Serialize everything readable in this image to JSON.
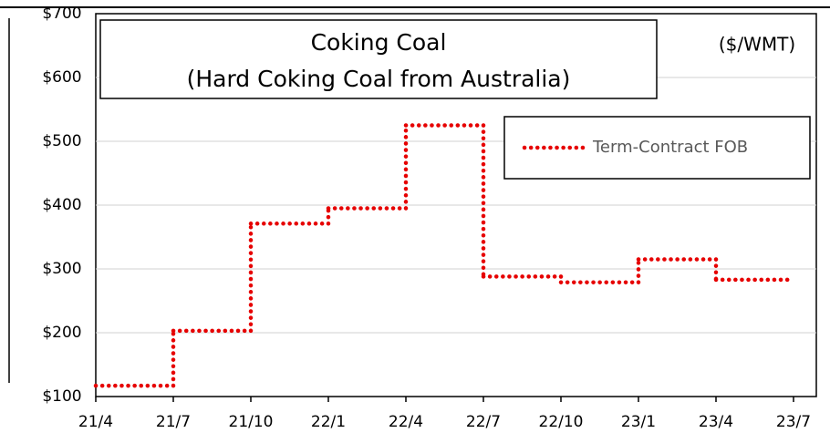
{
  "chart_data": {
    "type": "step",
    "title": "Coking Coal",
    "subtitle": "(Hard Coking Coal from Australia)",
    "unit_label": "($/WMT)",
    "categories": [
      "21/4",
      "21/7",
      "21/10",
      "22/1",
      "22/4",
      "22/7",
      "22/10",
      "23/1",
      "23/4",
      "23/7"
    ],
    "series": [
      {
        "name": "Term-Contract FOB",
        "color": "#e60000",
        "values": [
          117,
          203,
          371,
          395,
          525,
          288,
          279,
          315,
          283,
          null
        ]
      }
    ],
    "ylim": [
      100,
      700
    ],
    "yticks": [
      {
        "value": 100,
        "label": "$100"
      },
      {
        "value": 200,
        "label": "$200"
      },
      {
        "value": 300,
        "label": "$300"
      },
      {
        "value": 400,
        "label": "$400"
      },
      {
        "value": 500,
        "label": "$500"
      },
      {
        "value": 600,
        "label": "$600"
      },
      {
        "value": 700,
        "label": "$700"
      }
    ],
    "grid": true,
    "legend": "upper right"
  }
}
